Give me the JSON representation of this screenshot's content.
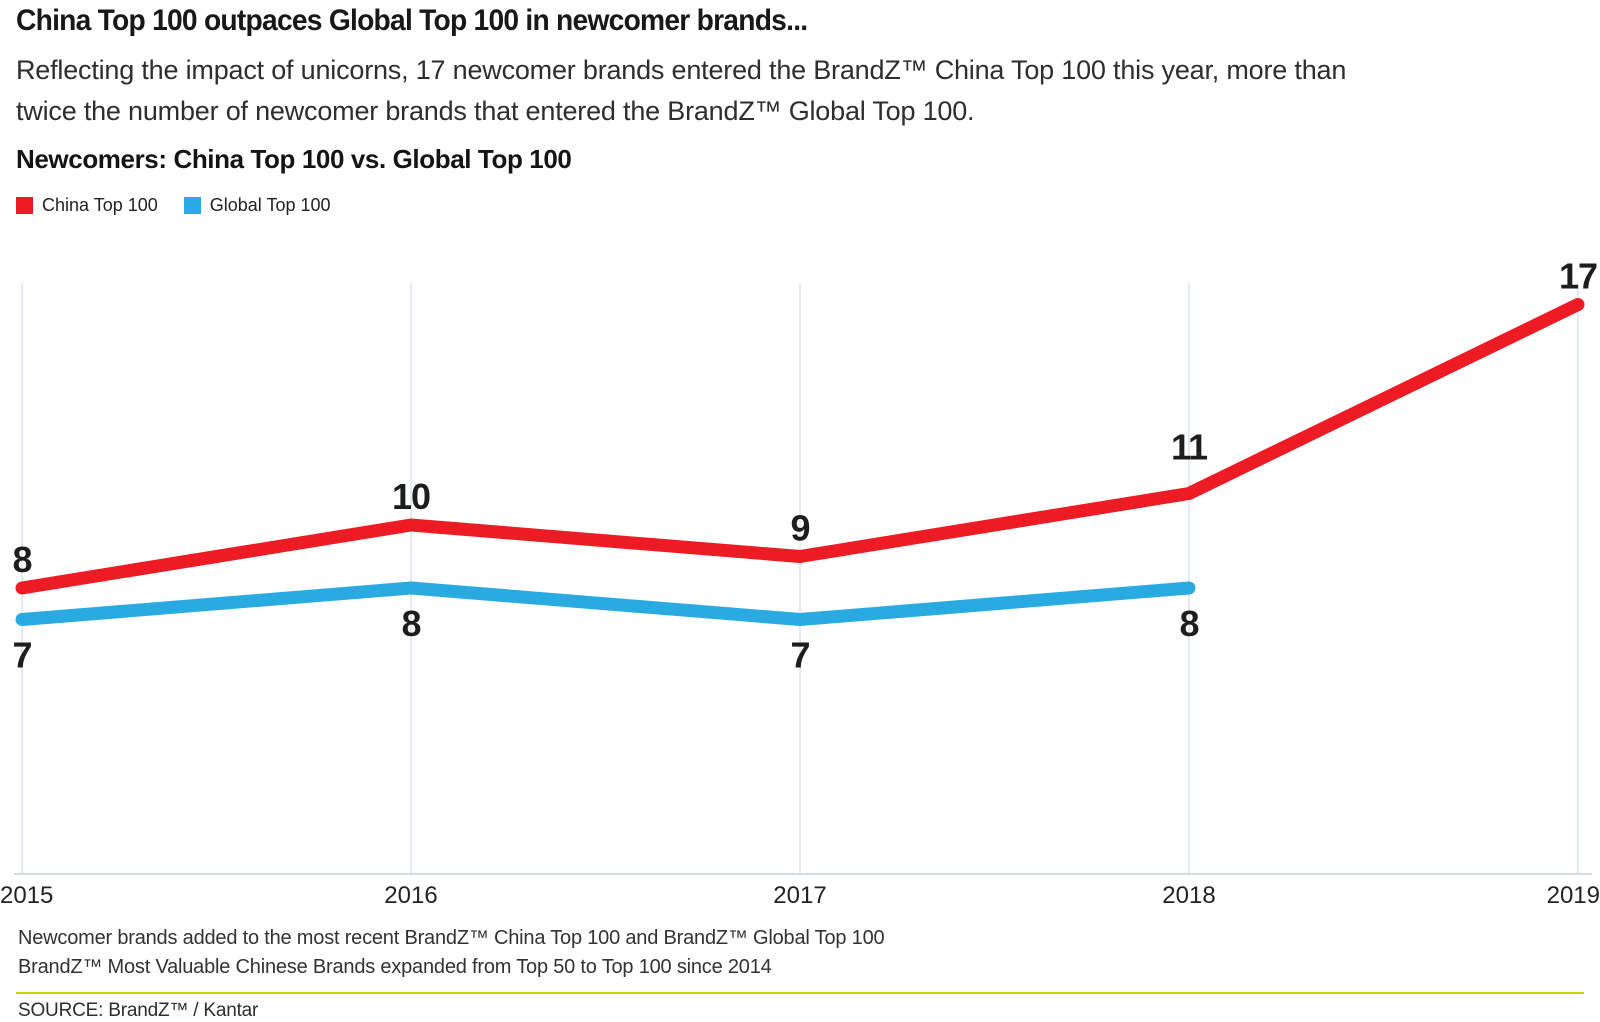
{
  "page": {
    "title": "China Top 100 outpaces Global Top 100 in newcomer brands...",
    "subtitle_lines": [
      "Reflecting the impact of unicorns, 17 newcomer brands entered the BrandZ™ China Top 100 this year, more than",
      "twice the number of newcomer brands that entered the BrandZ™ Global Top 100."
    ],
    "section_title": "Newcomers: China Top 100 vs. Global Top 100"
  },
  "legend": {
    "items": [
      {
        "label": "China Top 100",
        "color": "#ed1c24"
      },
      {
        "label": "Global Top 100",
        "color": "#29abe2"
      }
    ]
  },
  "chart_data": {
    "type": "line",
    "title": "Newcomers: China Top 100 vs. Global Top 100",
    "categories": [
      "2015",
      "2016",
      "2017",
      "2018",
      "2019"
    ],
    "series": [
      {
        "name": "China Top 100",
        "color": "#ed1c24",
        "values": [
          8,
          10,
          9,
          11,
          17
        ]
      },
      {
        "name": "Global Top 100",
        "color": "#29abe2",
        "values": [
          7,
          8,
          7,
          8,
          null
        ]
      }
    ],
    "value_labels": true,
    "grid": "vertical",
    "legend_position": "top-left",
    "xlabel": "",
    "ylabel": "",
    "ylim": [
      0,
      18
    ]
  },
  "footer": {
    "notes": [
      "Newcomer brands added to the most recent BrandZ™ China Top 100 and BrandZ™ Global Top 100",
      "BrandZ™ Most Valuable Chinese Brands expanded from Top 50 to Top 100 since 2014"
    ],
    "source": "SOURCE: BrandZ™ / Kantar"
  },
  "colors": {
    "china_red": "#ed1c24",
    "global_blue": "#29abe2",
    "gridline": "#e3eaf1",
    "axis": "#d6dce1",
    "divider_green": "#c4d600"
  }
}
